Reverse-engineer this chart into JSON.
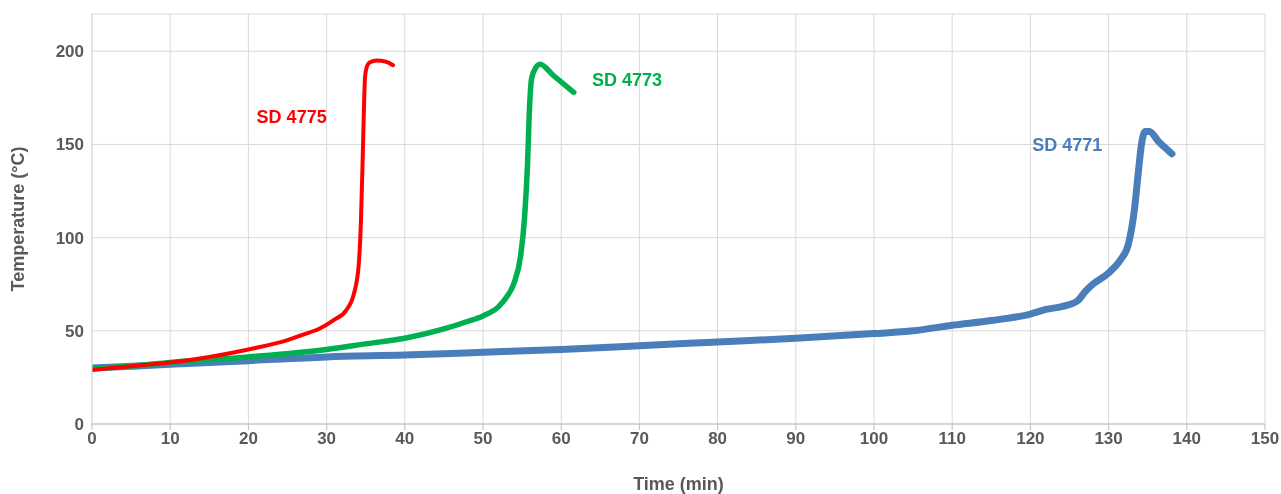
{
  "chart_data": {
    "type": "line",
    "xlabel": "Time (min)",
    "ylabel": "Temperature (°C)",
    "xlim": [
      0,
      150
    ],
    "xticks": [
      0,
      10,
      20,
      30,
      40,
      50,
      60,
      70,
      80,
      90,
      100,
      110,
      120,
      130,
      140,
      150
    ],
    "ylim": [
      0,
      220
    ],
    "yticks": [
      0,
      50,
      100,
      150,
      200
    ],
    "grid": true,
    "legend": false,
    "marker": "none",
    "line_style": "solid",
    "series": [
      {
        "name": "SD 4775",
        "color": "#ff0000",
        "x": [
          0,
          5,
          10,
          15,
          20,
          25,
          27,
          29,
          31,
          32.5,
          33.5,
          34.1,
          34.4,
          34.6,
          34.75,
          34.9,
          35.1,
          35.5,
          36.4,
          37.5,
          38.5
        ],
        "values": [
          29,
          31,
          33,
          36,
          40,
          45,
          48,
          51,
          56,
          61,
          70,
          85,
          110,
          140,
          165,
          185,
          191,
          194,
          195,
          194.5,
          192.5
        ]
      },
      {
        "name": "SD 4773",
        "color": "#00b050",
        "x": [
          0,
          5,
          10,
          20,
          30,
          35,
          40,
          45,
          48,
          50,
          52,
          53,
          54,
          54.8,
          55.3,
          55.7,
          55.9,
          56.2,
          56.6,
          57.3,
          59,
          61.6
        ],
        "values": [
          30,
          31,
          33,
          36,
          40,
          43,
          46,
          51,
          55,
          58,
          63,
          68,
          76,
          90,
          110,
          140,
          165,
          185,
          190,
          193,
          187,
          178
        ]
      },
      {
        "name": "SD 4771",
        "color": "#4a7ebb",
        "x": [
          0,
          10,
          20,
          30,
          40,
          50,
          60,
          70,
          80,
          90,
          100,
          105,
          110,
          115,
          120,
          122,
          124,
          126,
          127,
          128,
          130,
          131.5,
          132.5,
          133.3,
          133.8,
          134.2,
          134.7,
          135.2,
          136.5,
          137.3,
          138.1
        ],
        "values": [
          30,
          32,
          34,
          36,
          37,
          38.5,
          40,
          42,
          44,
          46,
          48.5,
          50,
          53,
          55.5,
          59,
          61.5,
          63,
          66,
          71,
          75,
          81,
          88,
          96,
          115,
          135,
          150,
          157,
          157,
          151,
          148,
          145
        ]
      }
    ]
  }
}
